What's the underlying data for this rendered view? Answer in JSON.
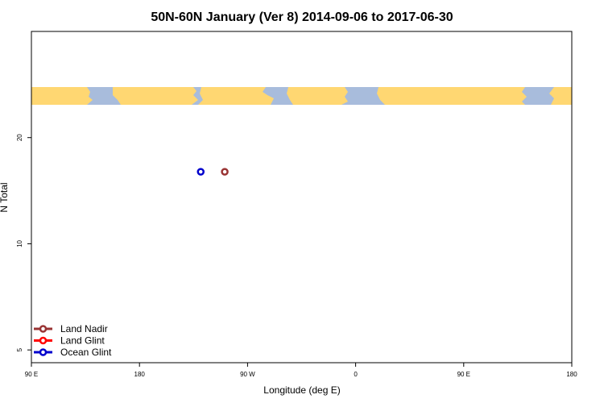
{
  "chart_data": {
    "type": "scatter",
    "title": "50N-60N January (Ver 8)   2014-09-06 to 2017-06-30",
    "xlabel": "Longitude (deg E)",
    "ylabel": "N Total",
    "x_ticks": [
      {
        "value": 90,
        "label": "90 E"
      },
      {
        "value": 180,
        "label": "180"
      },
      {
        "value": 270,
        "label": "90 W"
      },
      {
        "value": 360,
        "label": "0"
      },
      {
        "value": 450,
        "label": "90 E"
      },
      {
        "value": 540,
        "label": "180"
      }
    ],
    "y_ticks": [
      5,
      10,
      20
    ],
    "xlim": [
      90,
      540
    ],
    "ylim": [
      4.6,
      40
    ],
    "y_scale": "log",
    "grid": false,
    "legend_position": "bottom-left",
    "series": [
      {
        "name": "Land Nadir",
        "color": "#993333",
        "points": [
          {
            "x": 251,
            "y": 16
          }
        ]
      },
      {
        "name": "Land Glint",
        "color": "#ff0000",
        "points": []
      },
      {
        "name": "Ocean Glint",
        "color": "#0000cc",
        "points": [
          {
            "x": 231,
            "y": 16
          }
        ]
      }
    ],
    "map_strip": {
      "ocean_color": "#a8bcdc",
      "land_color": "#ffd772"
    }
  }
}
